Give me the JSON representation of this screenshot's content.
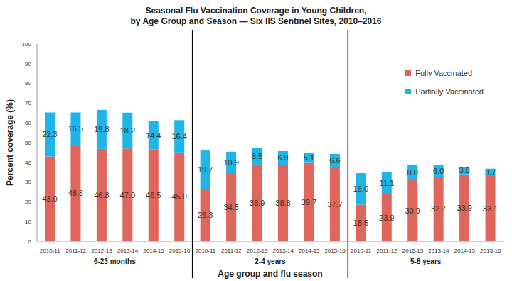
{
  "chart_data": {
    "type": "bar",
    "title": [
      "Seasonal Flu Vaccination Coverage in Young Children,",
      "by Age Group and Season — Six IIS Sentinel Sites, 2010–2016"
    ],
    "x_label": "Age group and flu season",
    "y_label": "Percent coverage (%)",
    "groups": [
      {
        "label": "6-23 months",
        "categories": [
          "2010-11",
          "2011-12",
          "2012-13",
          "2013-14",
          "2014-15",
          "2015-16"
        ]
      },
      {
        "label": "2-4 years",
        "categories": [
          "2010-11",
          "2011-12",
          "2012-13",
          "2013-14",
          "2014-15",
          "2015-16"
        ]
      },
      {
        "label": "5-8 years",
        "categories": [
          "2010-11",
          "2011-12",
          "2012-13",
          "2013-14",
          "2014-15",
          "2015-16"
        ]
      }
    ],
    "series": [
      {
        "name": "Fully Vaccinated",
        "color": "#E0655B",
        "values": [
          43.0,
          48.8,
          46.8,
          47.0,
          46.5,
          45.0,
          26.3,
          34.5,
          38.9,
          38.8,
          39.7,
          37.7,
          18.5,
          23.9,
          30.9,
          32.7,
          33.9,
          33.1
        ],
        "value_labels": [
          "43.0",
          "48.8",
          "46.8",
          "47.0",
          "46.5",
          "45.0",
          "26.3",
          "34.5",
          "38.9",
          "38.8",
          "39.7",
          "37.7",
          "18.5",
          "23.9",
          "30.9",
          "32.7",
          "33.9",
          "33.1"
        ]
      },
      {
        "name": "Partially Vaccinated",
        "color": "#1FB5E8",
        "values": [
          22.3,
          16.5,
          19.8,
          18.2,
          14.4,
          16.4,
          19.7,
          10.9,
          8.5,
          6.9,
          5.1,
          6.6,
          16.0,
          11.1,
          8.0,
          6.0,
          3.8,
          3.7
        ],
        "value_labels": [
          "22.3",
          "16.5",
          "19.8",
          "18.2",
          "14.4",
          "16.4",
          "19.7",
          "10.9",
          "8.5",
          "6.9",
          "5.1",
          "6.6",
          "16.0",
          "11.1",
          "8.0",
          "6.0",
          "3.8",
          "3.7"
        ]
      }
    ],
    "ylim": [
      0,
      100
    ],
    "yticks": [
      0,
      10,
      20,
      30,
      40,
      50,
      60,
      70,
      80,
      90,
      100
    ],
    "stacked": true,
    "data_labels": true,
    "legend": "upper right",
    "grid": false
  }
}
